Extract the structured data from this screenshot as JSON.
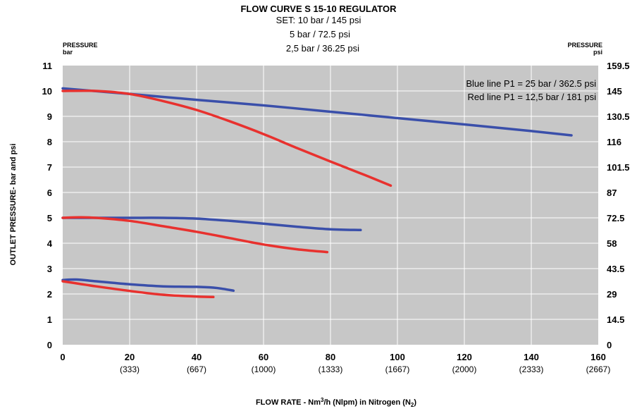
{
  "chart_data": {
    "type": "line",
    "title": "FLOW CURVE S 15-10 REGULATOR",
    "subtitle": [
      "SET: 10 bar / 145 psi",
      "5 bar / 72.5 psi",
      "2,5 bar / 36.25 psi"
    ],
    "left_axis_caption": [
      "PRESSURE",
      "bar"
    ],
    "right_axis_caption": [
      "PRESSURE",
      "psi"
    ],
    "ylabel": "OUTLET PRESSURE- bar and psi",
    "xlabel": {
      "prefix": "FLOW RATE - Nm",
      "sup": "3",
      "middle": "/h (Nlpm) in Nitrogen (N",
      "sub": "2",
      "suffix": ")"
    },
    "xlim": [
      0,
      160
    ],
    "ylim": [
      0,
      11
    ],
    "x_ticks": [
      0,
      20,
      40,
      60,
      80,
      100,
      120,
      140,
      160
    ],
    "x_ticks_secondary": [
      "",
      "(333)",
      "(667)",
      "(1000)",
      "(1333)",
      "(1667)",
      "(2000)",
      "(2333)",
      "(2667)"
    ],
    "y_ticks": [
      0,
      1,
      2,
      3,
      4,
      5,
      6,
      7,
      8,
      9,
      10,
      11
    ],
    "y_right_ticks": [
      "0",
      "14.5",
      "29",
      "43.5",
      "58",
      "72.5",
      "87",
      "101.5",
      "116",
      "130.5",
      "145",
      "159.5"
    ],
    "legend": [
      "Blue line P1 = 25 bar / 362.5 psi",
      "Red line P1 = 12,5 bar / 181 psi"
    ],
    "legend_placement": "top-right",
    "grid": true,
    "colors": {
      "plot_bg": "#c7c7c7",
      "grid": "#ffffff",
      "blue": "#3a4faa",
      "red": "#e8312e"
    },
    "series": [
      {
        "color": "blue",
        "x": [
          0,
          20,
          40,
          60,
          80,
          100,
          120,
          140,
          152
        ],
        "y": [
          10.1,
          9.88,
          9.65,
          9.43,
          9.18,
          8.93,
          8.68,
          8.42,
          8.25
        ]
      },
      {
        "color": "red",
        "x": [
          0,
          10,
          20,
          30,
          40,
          50,
          60,
          70,
          80,
          90,
          98
        ],
        "y": [
          10.0,
          10.0,
          9.88,
          9.6,
          9.25,
          8.8,
          8.3,
          7.75,
          7.22,
          6.7,
          6.27
        ]
      },
      {
        "color": "blue",
        "x": [
          0,
          10,
          20,
          30,
          40,
          50,
          60,
          70,
          80,
          89
        ],
        "y": [
          5.0,
          5.0,
          5.0,
          5.0,
          4.97,
          4.88,
          4.77,
          4.65,
          4.55,
          4.52
        ]
      },
      {
        "color": "red",
        "x": [
          0,
          5,
          10,
          20,
          30,
          40,
          50,
          60,
          70,
          79
        ],
        "y": [
          5.0,
          5.02,
          5.0,
          4.88,
          4.67,
          4.45,
          4.2,
          3.95,
          3.76,
          3.65
        ]
      },
      {
        "color": "blue",
        "x": [
          0,
          4,
          10,
          20,
          30,
          40,
          45,
          48,
          51
        ],
        "y": [
          2.55,
          2.57,
          2.5,
          2.38,
          2.3,
          2.28,
          2.25,
          2.2,
          2.13
        ]
      },
      {
        "color": "red",
        "x": [
          0,
          5,
          10,
          20,
          30,
          40,
          45
        ],
        "y": [
          2.5,
          2.4,
          2.3,
          2.12,
          1.97,
          1.9,
          1.88
        ]
      }
    ]
  }
}
